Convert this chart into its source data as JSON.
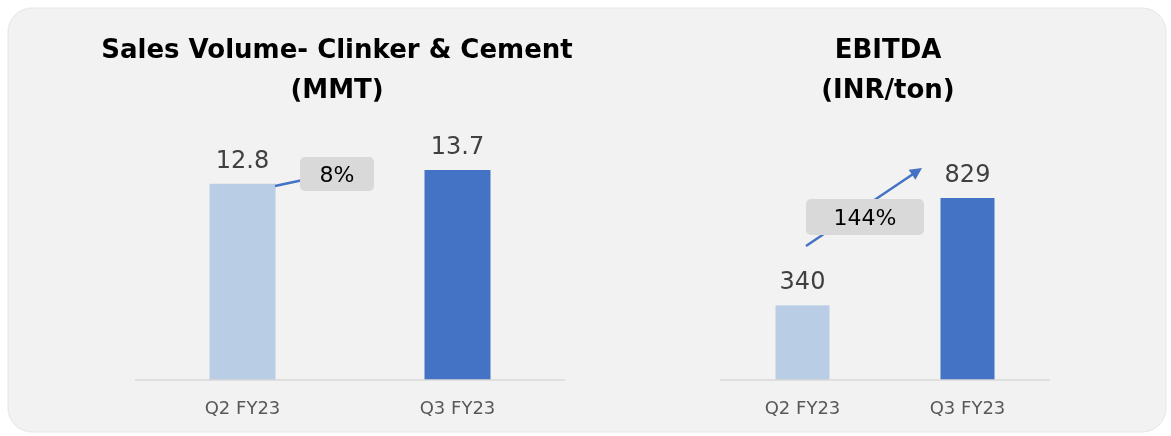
{
  "chart_data": [
    {
      "type": "bar",
      "title": "Sales Volume- Clinker & Cement\n(MMT)",
      "categories": [
        "Q2 FY23",
        "Q3 FY23"
      ],
      "values": [
        12.8,
        13.7
      ],
      "colors": [
        "#b9cde5",
        "#4472c4"
      ],
      "data_labels": true,
      "annotations": [
        "8%"
      ]
    },
    {
      "type": "bar",
      "title": "EBITDA\n(INR/ton)",
      "categories": [
        "Q2 FY23",
        "Q3 FY23"
      ],
      "values": [
        340,
        829
      ],
      "colors": [
        "#b9cde5",
        "#4472c4"
      ],
      "data_labels": true,
      "annotations": [
        "144%"
      ]
    }
  ]
}
